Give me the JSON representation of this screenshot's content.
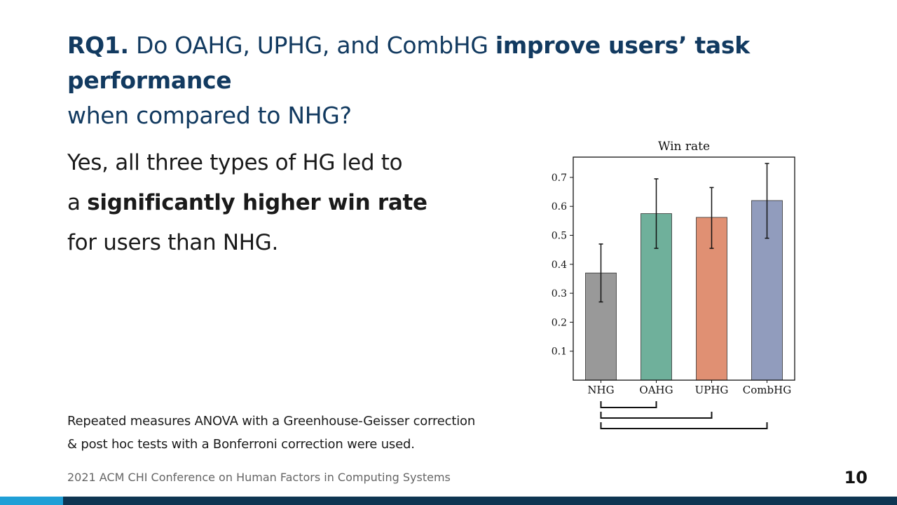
{
  "slide": {
    "title": {
      "rq": "RQ1.",
      "part1": "Do OAHG, UPHG, and CombHG",
      "emph": "improve users’ task performance",
      "part2": "when compared to NHG?"
    },
    "body": {
      "line1": "Yes, all three types of HG led to",
      "line2_prefix": "a",
      "line2_bold": "significantly higher win rate",
      "line3": "for users than NHG."
    },
    "note": {
      "line1": "Repeated measures ANOVA with a Greenhouse-Geisser correction",
      "line2": "& post hoc tests with a Bonferroni correction were used."
    },
    "footer": "2021 ACM CHI Conference on Human Factors in Computing Systems",
    "page_number": "10",
    "colors": {
      "title": "#123a60",
      "bar_dark": "#0e3552",
      "bar_accent": "#1f9fd6"
    }
  },
  "chart_data": {
    "type": "bar",
    "title": "Win rate",
    "categories": [
      "NHG",
      "OAHG",
      "UPHG",
      "CombHG"
    ],
    "values": [
      0.37,
      0.575,
      0.562,
      0.62
    ],
    "error_low": [
      0.27,
      0.455,
      0.455,
      0.49
    ],
    "error_high": [
      0.47,
      0.695,
      0.665,
      0.748
    ],
    "colors": [
      "#999999",
      "#6fb09b",
      "#e09073",
      "#919cbd"
    ],
    "yticks": [
      0.1,
      0.2,
      0.3,
      0.4,
      0.5,
      0.6,
      0.7
    ],
    "ylim": [
      0,
      0.77
    ],
    "xlabel": "",
    "ylabel": "",
    "grid": false,
    "significance_brackets": [
      {
        "from": "NHG",
        "to": "OAHG"
      },
      {
        "from": "NHG",
        "to": "UPHG"
      },
      {
        "from": "NHG",
        "to": "CombHG"
      }
    ]
  }
}
